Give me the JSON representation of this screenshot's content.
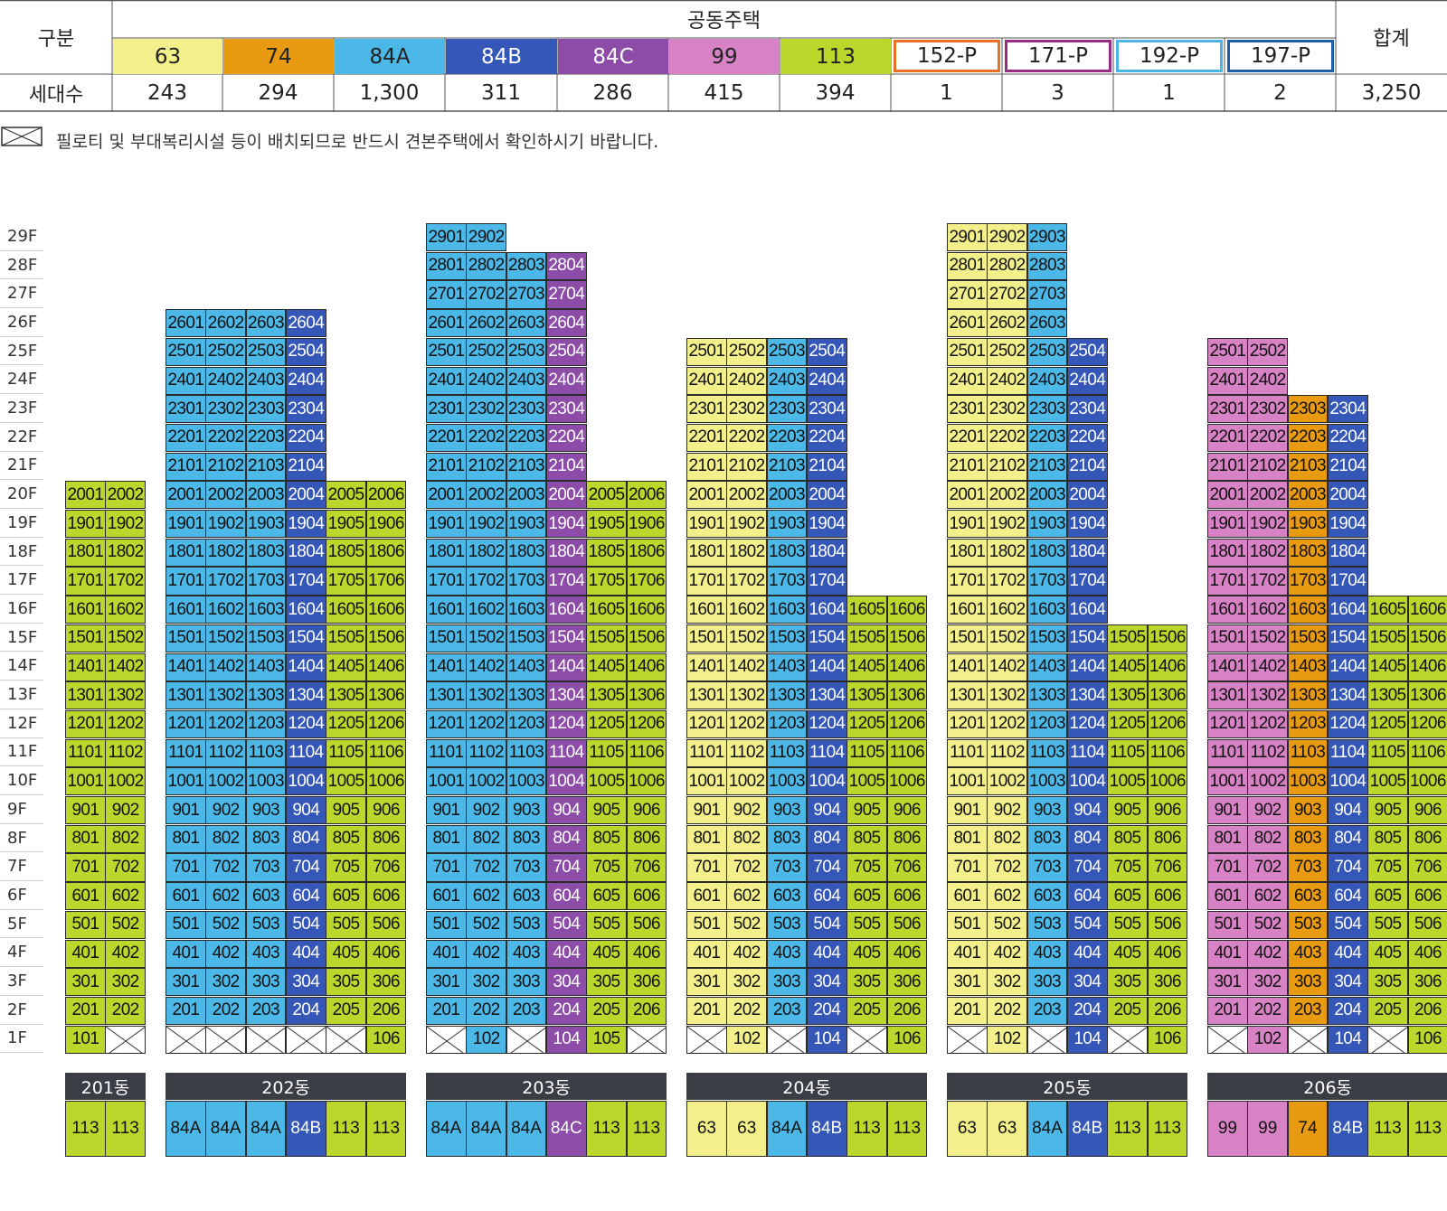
{
  "colors": {
    "63": "#f3f08c",
    "74": "#e89a10",
    "84A": "#4cb8e8",
    "84B": "#3557b8",
    "84C": "#8c4ca8",
    "99": "#d882c6",
    "113": "#bcd72c",
    "152-P": "#e87022",
    "171-P": "#9a2a86",
    "192-P": "#4ab4e6",
    "197-P": "#1e5ea8"
  },
  "summary": {
    "label_category": "구분",
    "label_group": "공동주택",
    "label_total": "합계",
    "label_count": "세대수",
    "types": [
      {
        "name": "63",
        "count": "243",
        "style": "fill"
      },
      {
        "name": "74",
        "count": "294",
        "style": "fill"
      },
      {
        "name": "84A",
        "count": "1,300",
        "style": "fill"
      },
      {
        "name": "84B",
        "count": "311",
        "style": "fill"
      },
      {
        "name": "84C",
        "count": "286",
        "style": "fill"
      },
      {
        "name": "99",
        "count": "415",
        "style": "fill"
      },
      {
        "name": "113",
        "count": "394",
        "style": "fill"
      },
      {
        "name": "152-P",
        "count": "1",
        "style": "border"
      },
      {
        "name": "171-P",
        "count": "3",
        "style": "border"
      },
      {
        "name": "192-P",
        "count": "1",
        "style": "border"
      },
      {
        "name": "197-P",
        "count": "2",
        "style": "border"
      }
    ],
    "total": "3,250"
  },
  "note": "필로티 및 부대복리시설 등이 배치되므로 반드시 견본주택에서 확인하시기 바랍니다.",
  "floor_labels": [
    "29F",
    "28F",
    "27F",
    "26F",
    "25F",
    "24F",
    "23F",
    "22F",
    "21F",
    "20F",
    "19F",
    "18F",
    "17F",
    "16F",
    "15F",
    "14F",
    "13F",
    "12F",
    "11F",
    "10F",
    "9F",
    "8F",
    "7F",
    "6F",
    "5F",
    "4F",
    "3F",
    "2F",
    "1F"
  ],
  "buildings": [
    {
      "name": "201동",
      "lines": [
        {
          "type": "113",
          "top": 20,
          "g": [
            1
          ]
        },
        {
          "type": "113",
          "top": 20,
          "g": []
        }
      ]
    },
    {
      "name": "202동",
      "lines": [
        {
          "type": "84A",
          "top": 26,
          "g": []
        },
        {
          "type": "84A",
          "top": 26,
          "g": []
        },
        {
          "type": "84A",
          "top": 26,
          "g": []
        },
        {
          "type": "84B",
          "top": 26,
          "g": []
        },
        {
          "type": "113",
          "top": 20,
          "g": []
        },
        {
          "type": "113",
          "top": 20,
          "g": [
            1
          ]
        }
      ]
    },
    {
      "name": "203동",
      "lines": [
        {
          "type": "84A",
          "top": 29,
          "g": []
        },
        {
          "type": "84A",
          "top": 29,
          "g": [
            1
          ]
        },
        {
          "type": "84A",
          "top": 28,
          "g": []
        },
        {
          "type": "84C",
          "top": 28,
          "g": [
            1
          ]
        },
        {
          "type": "113",
          "top": 20,
          "g": [
            1
          ]
        },
        {
          "type": "113",
          "top": 20,
          "g": []
        }
      ]
    },
    {
      "name": "204동",
      "lines": [
        {
          "type": "63",
          "top": 25,
          "g": []
        },
        {
          "type": "63",
          "top": 25,
          "g": [
            1
          ]
        },
        {
          "type": "84A",
          "top": 25,
          "g": []
        },
        {
          "type": "84B",
          "top": 25,
          "g": [
            1
          ]
        },
        {
          "type": "113",
          "top": 16,
          "g": []
        },
        {
          "type": "113",
          "top": 16,
          "g": [
            1
          ]
        }
      ]
    },
    {
      "name": "205동",
      "lines": [
        {
          "type": "63",
          "top": 29,
          "g": []
        },
        {
          "type": "63",
          "top": 29,
          "g": [
            1
          ]
        },
        {
          "type": "84A",
          "top": 29,
          "g": []
        },
        {
          "type": "84B",
          "top": 25,
          "g": [
            1
          ]
        },
        {
          "type": "113",
          "top": 15,
          "g": []
        },
        {
          "type": "113",
          "top": 15,
          "g": [
            1
          ]
        }
      ]
    },
    {
      "name": "206동",
      "lines": [
        {
          "type": "99",
          "top": 25,
          "g": []
        },
        {
          "type": "99",
          "top": 25,
          "g": [
            1
          ]
        },
        {
          "type": "74",
          "top": 23,
          "g": []
        },
        {
          "type": "84B",
          "top": 23,
          "g": [
            1
          ]
        },
        {
          "type": "113",
          "top": 16,
          "g": []
        },
        {
          "type": "113",
          "top": 16,
          "g": [
            1
          ]
        }
      ]
    }
  ]
}
